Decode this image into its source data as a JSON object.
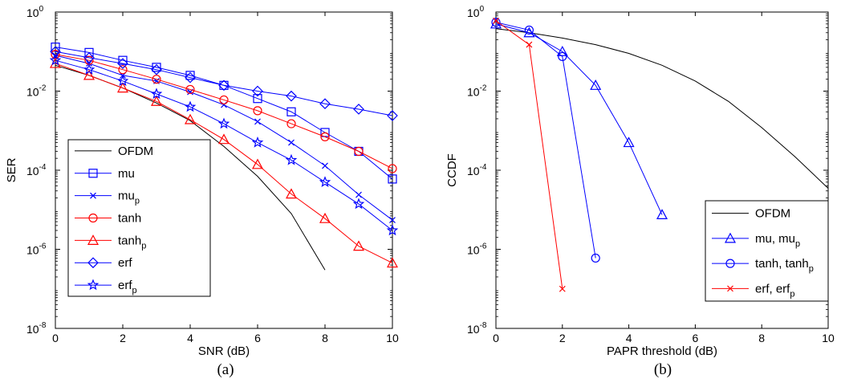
{
  "chart_data": [
    {
      "type": "line",
      "caption": "(a)",
      "xlabel": "SNR (dB)",
      "ylabel": "SER",
      "xlim": [
        0,
        10
      ],
      "ylim": [
        1e-08,
        1
      ],
      "yscale": "log",
      "xticks": [
        0,
        2,
        4,
        6,
        8,
        10
      ],
      "yticks": [
        {
          "base": "10",
          "exp": "0"
        },
        {
          "base": "10",
          "exp": "-2"
        },
        {
          "base": "10",
          "exp": "-4"
        },
        {
          "base": "10",
          "exp": "-6"
        },
        {
          "base": "10",
          "exp": "-8"
        }
      ],
      "grid": false,
      "legend_position": "bottom-left",
      "series": [
        {
          "name": "OFDM",
          "sub": "",
          "color": "#000000",
          "marker": "none",
          "x": [
            0,
            1,
            2,
            3,
            4,
            5,
            6,
            7,
            8
          ],
          "y": [
            0.045,
            0.025,
            0.012,
            0.005,
            0.0018,
            0.0004,
            7e-05,
            8e-06,
            3e-07
          ]
        },
        {
          "name": "mu",
          "sub": "",
          "color": "#0000ff",
          "marker": "square",
          "x": [
            0,
            1,
            2,
            3,
            4,
            5,
            6,
            7,
            8,
            9,
            10
          ],
          "y": [
            0.13,
            0.095,
            0.06,
            0.04,
            0.025,
            0.014,
            0.0065,
            0.003,
            0.0009,
            0.0003,
            6e-05
          ]
        },
        {
          "name": "mu",
          "sub": "p",
          "color": "#0000ff",
          "marker": "x",
          "x": [
            0,
            1,
            2,
            3,
            4,
            5,
            6,
            7,
            8,
            9,
            10
          ],
          "y": [
            0.08,
            0.05,
            0.025,
            0.018,
            0.0095,
            0.0045,
            0.0017,
            0.0005,
            0.00013,
            2.4e-05,
            5.5e-06
          ]
        },
        {
          "name": "tanh",
          "sub": "",
          "color": "#ff0000",
          "marker": "circle",
          "x": [
            0,
            1,
            2,
            3,
            4,
            5,
            6,
            7,
            8,
            9,
            10
          ],
          "y": [
            0.085,
            0.06,
            0.035,
            0.02,
            0.011,
            0.006,
            0.0032,
            0.0015,
            0.0007,
            0.0003,
            0.00011
          ]
        },
        {
          "name": "tanh",
          "sub": "p",
          "color": "#ff0000",
          "marker": "triangle",
          "x": [
            0,
            1,
            2,
            3,
            4,
            5,
            6,
            7,
            8,
            9,
            10
          ],
          "y": [
            0.05,
            0.025,
            0.012,
            0.0055,
            0.0019,
            0.0006,
            0.00014,
            2.5e-05,
            6e-06,
            1.2e-06,
            4.5e-07
          ]
        },
        {
          "name": "erf",
          "sub": "",
          "color": "#0000ff",
          "marker": "diamond",
          "x": [
            0,
            1,
            2,
            3,
            4,
            5,
            6,
            7,
            8,
            9,
            10
          ],
          "y": [
            0.1,
            0.07,
            0.05,
            0.035,
            0.022,
            0.014,
            0.01,
            0.0075,
            0.0048,
            0.0035,
            0.0024
          ]
        },
        {
          "name": "erf",
          "sub": "p",
          "color": "#0000ff",
          "marker": "star",
          "x": [
            0,
            1,
            2,
            3,
            4,
            5,
            6,
            7,
            8,
            9,
            10
          ],
          "y": [
            0.06,
            0.035,
            0.018,
            0.0085,
            0.004,
            0.0015,
            0.0005,
            0.00018,
            5e-05,
            1.4e-05,
            3e-06
          ]
        }
      ]
    },
    {
      "type": "line",
      "caption": "(b)",
      "xlabel": "PAPR threshold (dB)",
      "ylabel": "CCDF",
      "xlim": [
        0,
        10
      ],
      "ylim": [
        1e-08,
        1
      ],
      "yscale": "log",
      "xticks": [
        0,
        2,
        4,
        6,
        8,
        10
      ],
      "yticks": [
        {
          "base": "10",
          "exp": "0"
        },
        {
          "base": "10",
          "exp": "-2"
        },
        {
          "base": "10",
          "exp": "-4"
        },
        {
          "base": "10",
          "exp": "-6"
        },
        {
          "base": "10",
          "exp": "-8"
        }
      ],
      "grid": false,
      "legend_position": "bottom-right",
      "series": [
        {
          "name": "OFDM",
          "sub": "",
          "color": "#000000",
          "marker": "none",
          "x": [
            0,
            1,
            2,
            3,
            4,
            5,
            6,
            7,
            8,
            9,
            10
          ],
          "y": [
            0.38,
            0.3,
            0.22,
            0.15,
            0.09,
            0.045,
            0.018,
            0.0055,
            0.0012,
            0.00022,
            3.5e-05
          ]
        },
        {
          "name": "mu, mu",
          "sub": "p",
          "color": "#0000ff",
          "marker": "triangle",
          "x": [
            0,
            1,
            2,
            3,
            4,
            5
          ],
          "y": [
            0.5,
            0.3,
            0.1,
            0.014,
            0.0005,
            7.5e-06
          ]
        },
        {
          "name": "tanh, tanh",
          "sub": "p",
          "color": "#0000ff",
          "marker": "circle",
          "x": [
            0,
            1,
            2,
            3
          ],
          "y": [
            0.55,
            0.35,
            0.075,
            6e-07
          ]
        },
        {
          "name": "erf, erf",
          "sub": "p",
          "color": "#ff0000",
          "marker": "x",
          "x": [
            0,
            1,
            2
          ],
          "y": [
            0.6,
            0.15,
            1e-07
          ]
        }
      ]
    }
  ]
}
